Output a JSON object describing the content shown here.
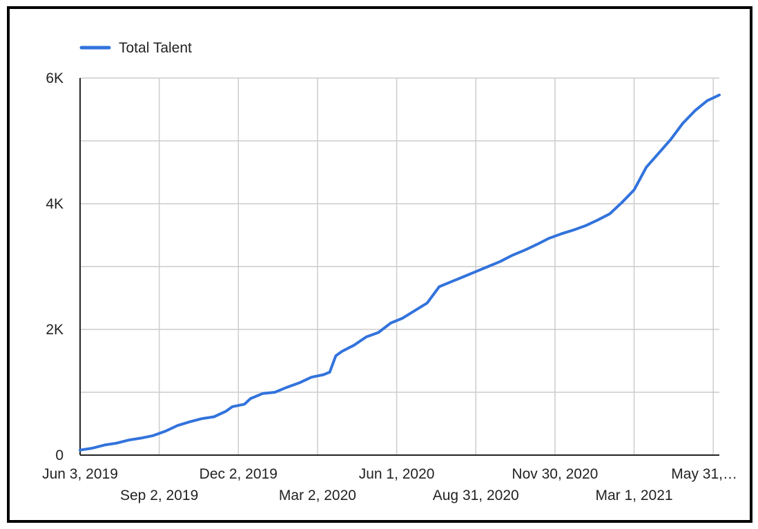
{
  "chart_data": {
    "type": "line",
    "title": "",
    "xlabel": "",
    "ylabel": "",
    "legend_position": "top-left",
    "grid": true,
    "ylim": [
      0,
      6000
    ],
    "y_ticks": [
      {
        "value": 0,
        "label": "0"
      },
      {
        "value": 2000,
        "label": "2K"
      },
      {
        "value": 4000,
        "label": "4K"
      },
      {
        "value": 6000,
        "label": "6K"
      }
    ],
    "y_minor_gridlines": [
      1000,
      3000,
      5000
    ],
    "xlim": [
      "2019-06-03",
      "2021-06-07"
    ],
    "x_ticks": [
      {
        "date": "2019-06-03",
        "label": "Jun 3, 2019",
        "row": 1
      },
      {
        "date": "2019-09-02",
        "label": "Sep 2, 2019",
        "row": 2
      },
      {
        "date": "2019-12-02",
        "label": "Dec 2, 2019",
        "row": 1
      },
      {
        "date": "2020-03-02",
        "label": "Mar 2, 2020",
        "row": 2
      },
      {
        "date": "2020-06-01",
        "label": "Jun 1, 2020",
        "row": 1
      },
      {
        "date": "2020-08-31",
        "label": "Aug 31, 2020",
        "row": 2
      },
      {
        "date": "2020-11-30",
        "label": "Nov 30, 2020",
        "row": 1
      },
      {
        "date": "2021-03-01",
        "label": "Mar 1, 2021",
        "row": 2
      },
      {
        "date": "2021-05-31",
        "label": "May 31,…",
        "row": 1
      }
    ],
    "series": [
      {
        "name": "Total Talent",
        "color": "#3273dc",
        "points": [
          [
            "2019-06-03",
            80
          ],
          [
            "2019-06-17",
            110
          ],
          [
            "2019-07-01",
            160
          ],
          [
            "2019-07-15",
            190
          ],
          [
            "2019-07-29",
            240
          ],
          [
            "2019-08-12",
            270
          ],
          [
            "2019-08-26",
            310
          ],
          [
            "2019-09-09",
            380
          ],
          [
            "2019-09-23",
            470
          ],
          [
            "2019-10-07",
            530
          ],
          [
            "2019-10-21",
            580
          ],
          [
            "2019-11-04",
            610
          ],
          [
            "2019-11-18",
            700
          ],
          [
            "2019-11-25",
            770
          ],
          [
            "2019-12-09",
            810
          ],
          [
            "2019-12-16",
            900
          ],
          [
            "2019-12-30",
            980
          ],
          [
            "2020-01-13",
            1000
          ],
          [
            "2020-01-27",
            1080
          ],
          [
            "2020-02-10",
            1150
          ],
          [
            "2020-02-24",
            1240
          ],
          [
            "2020-03-09",
            1280
          ],
          [
            "2020-03-16",
            1320
          ],
          [
            "2020-03-23",
            1580
          ],
          [
            "2020-03-30",
            1650
          ],
          [
            "2020-04-13",
            1750
          ],
          [
            "2020-04-27",
            1880
          ],
          [
            "2020-05-11",
            1950
          ],
          [
            "2020-05-25",
            2100
          ],
          [
            "2020-06-08",
            2180
          ],
          [
            "2020-06-22",
            2300
          ],
          [
            "2020-07-06",
            2420
          ],
          [
            "2020-07-20",
            2680
          ],
          [
            "2020-08-03",
            2760
          ],
          [
            "2020-08-17",
            2840
          ],
          [
            "2020-08-31",
            2920
          ],
          [
            "2020-09-14",
            3000
          ],
          [
            "2020-09-28",
            3080
          ],
          [
            "2020-10-12",
            3180
          ],
          [
            "2020-10-26",
            3260
          ],
          [
            "2020-11-09",
            3350
          ],
          [
            "2020-11-23",
            3450
          ],
          [
            "2020-12-07",
            3520
          ],
          [
            "2020-12-21",
            3580
          ],
          [
            "2021-01-04",
            3650
          ],
          [
            "2021-01-18",
            3740
          ],
          [
            "2021-02-01",
            3840
          ],
          [
            "2021-02-15",
            4020
          ],
          [
            "2021-03-01",
            4220
          ],
          [
            "2021-03-15",
            4580
          ],
          [
            "2021-03-29",
            4800
          ],
          [
            "2021-04-12",
            5020
          ],
          [
            "2021-04-26",
            5280
          ],
          [
            "2021-05-10",
            5480
          ],
          [
            "2021-05-24",
            5640
          ],
          [
            "2021-06-07",
            5730
          ]
        ]
      }
    ]
  }
}
